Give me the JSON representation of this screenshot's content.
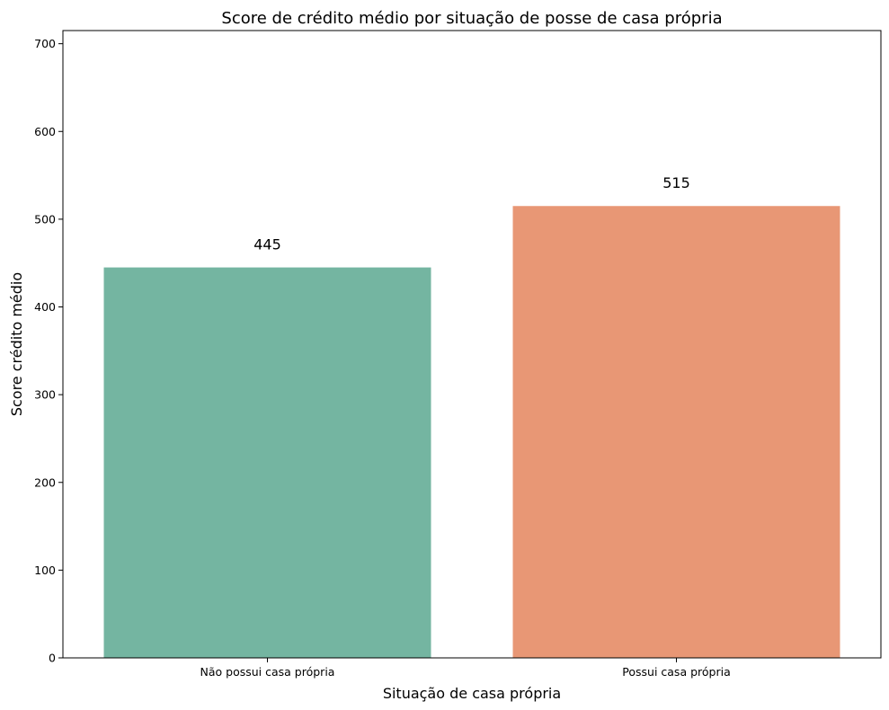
{
  "chart_data": {
    "type": "bar",
    "title": "Score de crédito médio por situação de posse de casa própria",
    "xlabel": "Situação de casa própria",
    "ylabel": "Score crédito médio",
    "categories": [
      "Não possui casa própria",
      "Possui casa própria"
    ],
    "values": [
      445,
      515
    ],
    "data_labels": [
      "445",
      "515"
    ],
    "colors": [
      "#74b5a1",
      "#e89775"
    ],
    "ylim": [
      0,
      715
    ],
    "yticks": [
      0,
      100,
      200,
      300,
      400,
      500,
      600,
      700
    ],
    "grid": false,
    "legend": "none"
  }
}
